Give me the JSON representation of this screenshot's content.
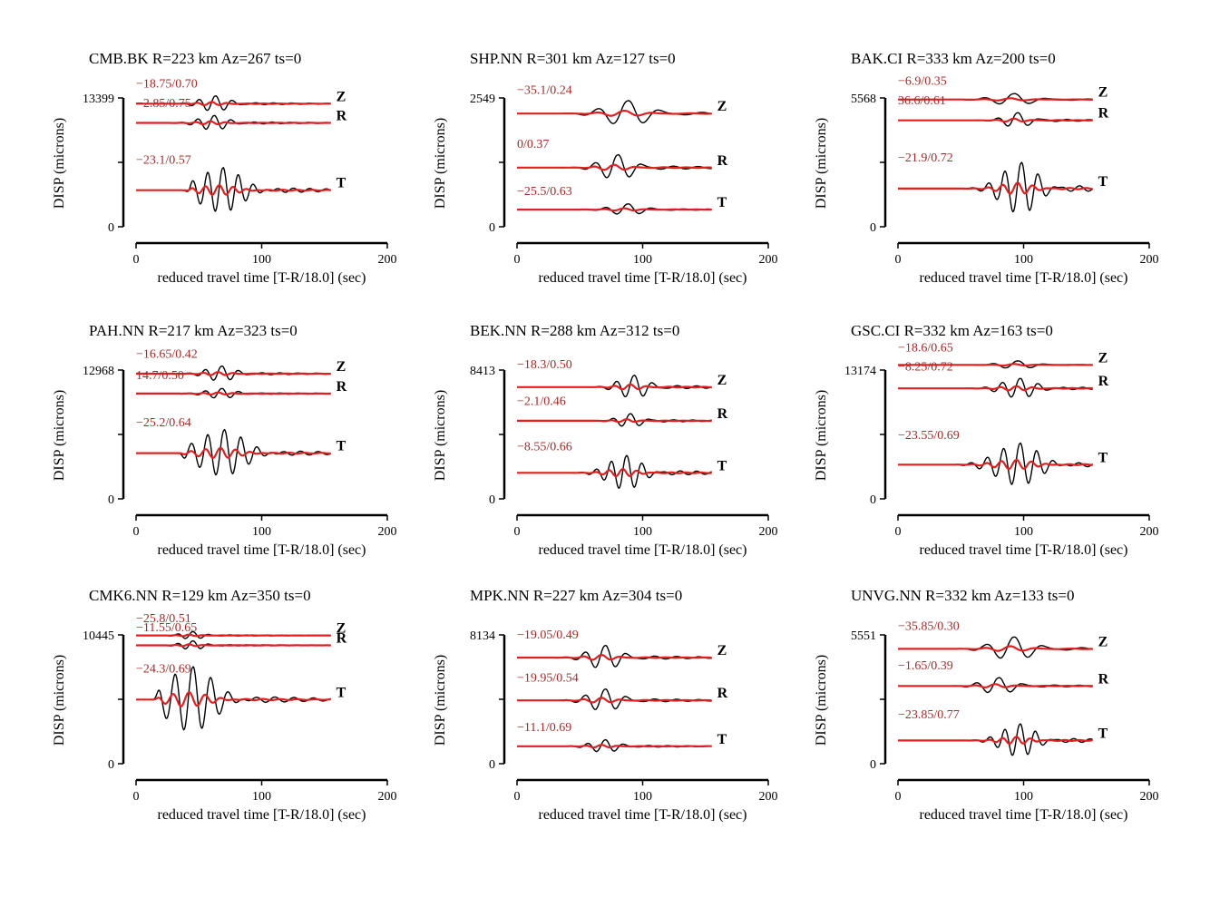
{
  "colors": {
    "data": "#000000",
    "synthetic": "#e02020",
    "shift_label": "#a52a2a"
  },
  "chart_data": [
    {
      "type": "line",
      "title": "CMB.BK R=223 km Az=267 ts=0",
      "xlabel": "reduced travel time [T-R/18.0] (sec)",
      "ylabel": "DISP (microns)",
      "xlim": [
        0,
        200
      ],
      "xticks": [
        0,
        100,
        200
      ],
      "ytop": 13399,
      "ylim": [
        0,
        13399
      ],
      "traces": [
        {
          "component": "Z",
          "shift_label": "−18.75/0.70",
          "baseline": 12800,
          "amp": 1600,
          "onset": 35,
          "center": 63,
          "period": 13,
          "sharp": 0.8
        },
        {
          "component": "R",
          "shift_label": "−2.85/0.75",
          "baseline": 10800,
          "amp": 1500,
          "onset": 30,
          "center": 62,
          "period": 13,
          "sharp": 0.8
        },
        {
          "component": "T",
          "shift_label": "−23.1/0.57",
          "baseline": 3800,
          "amp": 4600,
          "onset": 45,
          "center": 69,
          "period": 12,
          "sharp": 1.6
        }
      ]
    },
    {
      "type": "line",
      "title": "SHP.NN R=301 km Az=127 ts=0",
      "xlabel": "reduced travel time [T-R/18.0] (sec)",
      "ylabel": "DISP (microns)",
      "xlim": [
        0,
        200
      ],
      "xticks": [
        0,
        100,
        200
      ],
      "ytop": 2549,
      "ylim": [
        0,
        2549
      ],
      "traces": [
        {
          "component": "Z",
          "shift_label": "−35.1/0.24",
          "baseline": 2240,
          "amp": 500,
          "onset": 35,
          "center": 88,
          "period": 24,
          "sharp": 0.55
        },
        {
          "component": "R",
          "shift_label": "0/0.37",
          "baseline": 1170,
          "amp": 500,
          "onset": 35,
          "center": 80,
          "period": 18,
          "sharp": 0.55
        },
        {
          "component": "T",
          "shift_label": "−25.5/0.63",
          "baseline": 340,
          "amp": 220,
          "onset": 40,
          "center": 88,
          "period": 18,
          "sharp": 0.55
        }
      ]
    },
    {
      "type": "line",
      "title": "BAK.CI R=333 km Az=200 ts=0",
      "xlabel": "reduced travel time [T-R/18.0] (sec)",
      "ylabel": "DISP (microns)",
      "xlim": [
        0,
        200
      ],
      "xticks": [
        0,
        100,
        200
      ],
      "ytop": 5568,
      "ylim": [
        0,
        5568
      ],
      "traces": [
        {
          "component": "Z",
          "shift_label": "−6.9/0.35",
          "baseline": 5500,
          "amp": 500,
          "onset": 40,
          "center": 92,
          "period": 24,
          "sharp": 0.45
        },
        {
          "component": "R",
          "shift_label": "36.6/0.61",
          "baseline": 4600,
          "amp": 650,
          "onset": 40,
          "center": 95,
          "period": 16,
          "sharp": 0.45
        },
        {
          "component": "T",
          "shift_label": "−21.9/0.72",
          "baseline": 1650,
          "amp": 2200,
          "onset": 50,
          "center": 98,
          "period": 13,
          "sharp": 1.1
        }
      ]
    },
    {
      "type": "line",
      "title": "PAH.NN R=217 km Az=323 ts=0",
      "xlabel": "reduced travel time [T-R/18.0] (sec)",
      "ylabel": "DISP (microns)",
      "xlim": [
        0,
        200
      ],
      "xticks": [
        0,
        100,
        200
      ],
      "ytop": 12968,
      "ylim": [
        0,
        12968
      ],
      "traces": [
        {
          "component": "Z",
          "shift_label": "−16.65/0.42",
          "baseline": 12600,
          "amp": 1500,
          "onset": 35,
          "center": 68,
          "period": 13,
          "sharp": 0.8
        },
        {
          "component": "R",
          "shift_label": "14.7/0.50",
          "baseline": 10600,
          "amp": 1000,
          "onset": 30,
          "center": 68,
          "period": 13,
          "sharp": 0.8
        },
        {
          "component": "T",
          "shift_label": "−25.2/0.64",
          "baseline": 4600,
          "amp": 4600,
          "onset": 40,
          "center": 70,
          "period": 13,
          "sharp": 1.6
        }
      ]
    },
    {
      "type": "line",
      "title": "BEK.NN R=288 km Az=312 ts=0",
      "xlabel": "reduced travel time [T-R/18.0] (sec)",
      "ylabel": "DISP (microns)",
      "xlim": [
        0,
        200
      ],
      "xticks": [
        0,
        100,
        200
      ],
      "ytop": 8413,
      "ylim": [
        0,
        8413
      ],
      "traces": [
        {
          "component": "Z",
          "shift_label": "−18.3/0.50",
          "baseline": 7300,
          "amp": 1500,
          "onset": 35,
          "center": 93,
          "period": 14,
          "sharp": 0.7
        },
        {
          "component": "R",
          "shift_label": "−2.1/0.46",
          "baseline": 5100,
          "amp": 900,
          "onset": 35,
          "center": 90,
          "period": 14,
          "sharp": 0.5
        },
        {
          "component": "T",
          "shift_label": "−8.55/0.66",
          "baseline": 1700,
          "amp": 2200,
          "onset": 40,
          "center": 87,
          "period": 12,
          "sharp": 1.1
        }
      ]
    },
    {
      "type": "line",
      "title": "GSC.CI R=332 km Az=163 ts=0",
      "xlabel": "reduced travel time [T-R/18.0] (sec)",
      "ylabel": "DISP (microns)",
      "xlim": [
        0,
        200
      ],
      "xticks": [
        0,
        100,
        200
      ],
      "ytop": 13174,
      "ylim": [
        0,
        13174
      ],
      "traces": [
        {
          "component": "Z",
          "shift_label": "−18.6/0.65",
          "baseline": 13700,
          "amp": 800,
          "onset": 45,
          "center": 95,
          "period": 20,
          "sharp": 0.5
        },
        {
          "component": "R",
          "shift_label": "−8.25/0.72",
          "baseline": 11300,
          "amp": 2000,
          "onset": 45,
          "center": 97,
          "period": 14,
          "sharp": 0.9
        },
        {
          "component": "T",
          "shift_label": "−23.55/0.69",
          "baseline": 3500,
          "amp": 4300,
          "onset": 50,
          "center": 97,
          "period": 13,
          "sharp": 1.4
        }
      ]
    },
    {
      "type": "line",
      "title": "CMK6.NN R=129 km Az=350 ts=0",
      "xlabel": "reduced travel time [T-R/18.0] (sec)",
      "ylabel": "DISP (microns)",
      "xlim": [
        0,
        200
      ],
      "xticks": [
        0,
        100,
        200
      ],
      "ytop": 10445,
      "ylim": [
        0,
        10445
      ],
      "traces": [
        {
          "component": "Z",
          "shift_label": "−25.8/0.51",
          "baseline": 10400,
          "amp": 600,
          "onset": 20,
          "center": 45,
          "period": 12,
          "sharp": 0.6
        },
        {
          "component": "R",
          "shift_label": "−11.55/0.65",
          "baseline": 9600,
          "amp": 700,
          "onset": 20,
          "center": 45,
          "period": 12,
          "sharp": 0.6
        },
        {
          "component": "T",
          "shift_label": "−24.3/0.69",
          "baseline": 5200,
          "amp": 5200,
          "onset": 20,
          "center": 45,
          "period": 14,
          "sharp": 1.5
        }
      ]
    },
    {
      "type": "line",
      "title": "MPK.NN R=227 km Az=304 ts=0",
      "xlabel": "reduced travel time [T-R/18.0] (sec)",
      "ylabel": "DISP (microns)",
      "xlim": [
        0,
        200
      ],
      "xticks": [
        0,
        100,
        200
      ],
      "ytop": 8134,
      "ylim": [
        0,
        8134
      ],
      "traces": [
        {
          "component": "Z",
          "shift_label": "−19.05/0.49",
          "baseline": 6700,
          "amp": 1500,
          "onset": 30,
          "center": 70,
          "period": 16,
          "sharp": 0.65
        },
        {
          "component": "R",
          "shift_label": "−19.95/0.54",
          "baseline": 4000,
          "amp": 1400,
          "onset": 30,
          "center": 70,
          "period": 16,
          "sharp": 0.65
        },
        {
          "component": "T",
          "shift_label": "−11.1/0.69",
          "baseline": 1100,
          "amp": 800,
          "onset": 35,
          "center": 70,
          "period": 14,
          "sharp": 0.65
        }
      ]
    },
    {
      "type": "line",
      "title": "UNVG.NN R=332 km Az=133 ts=0",
      "xlabel": "reduced travel time [T-R/18.0] (sec)",
      "ylabel": "DISP (microns)",
      "xlim": [
        0,
        200
      ],
      "xticks": [
        0,
        100,
        200
      ],
      "ytop": 5551,
      "ylim": [
        0,
        5551
      ],
      "traces": [
        {
          "component": "Z",
          "shift_label": "−35.85/0.30",
          "baseline": 4950,
          "amp": 1000,
          "onset": 40,
          "center": 92,
          "period": 22,
          "sharp": 0.55
        },
        {
          "component": "R",
          "shift_label": "−1.65/0.39",
          "baseline": 3350,
          "amp": 700,
          "onset": 40,
          "center": 80,
          "period": 18,
          "sharp": 0.55
        },
        {
          "component": "T",
          "shift_label": "−23.85/0.77",
          "baseline": 1000,
          "amp": 1400,
          "onset": 50,
          "center": 97,
          "period": 12,
          "sharp": 1.1
        }
      ]
    }
  ]
}
